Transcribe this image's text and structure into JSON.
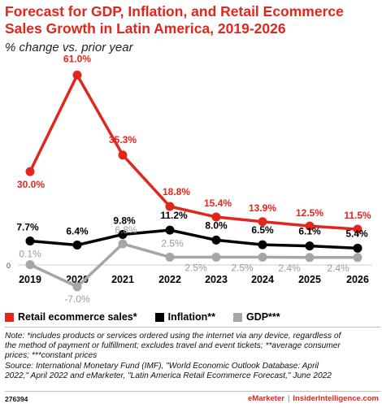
{
  "header": {
    "title_line1": "Forecast for GDP, Inflation, and Retail Ecommerce",
    "title_line2": "Sales Growth in Latin America, 2019-2026",
    "subtitle": "% change vs. prior year"
  },
  "chart_data": {
    "type": "line",
    "title": "Forecast for GDP, Inflation, and Retail Ecommerce Sales Growth in Latin America, 2019-2026",
    "subtitle": "% change vs. prior year",
    "x": [
      "2019",
      "2020",
      "2021",
      "2022",
      "2023",
      "2024",
      "2025",
      "2026"
    ],
    "ylim": [
      -9,
      63
    ],
    "zero_label": "0",
    "series": [
      {
        "name": "Retail ecommerce sales*",
        "color": "#e1261c",
        "values": [
          30.0,
          61.0,
          35.3,
          18.8,
          15.4,
          13.9,
          12.5,
          11.5
        ],
        "labels": [
          "30.0%",
          "61.0%",
          "35.3%",
          "18.8%",
          "15.4%",
          "13.9%",
          "12.5%",
          "11.5%"
        ]
      },
      {
        "name": "Inflation**",
        "color": "#000000",
        "values": [
          7.7,
          6.4,
          9.8,
          11.2,
          8.0,
          6.5,
          6.1,
          5.4
        ],
        "labels": [
          "7.7%",
          "6.4%",
          "9.8%",
          "11.2%",
          "8.0%",
          "6.5%",
          "6.1%",
          "5.4%"
        ]
      },
      {
        "name": "GDP***",
        "color": "#a6a6a6",
        "values": [
          0.1,
          -7.0,
          6.8,
          2.5,
          2.5,
          2.5,
          2.4,
          2.4
        ],
        "labels": [
          "0.1%",
          "-7.0%",
          "6.8%",
          "2.5%",
          "2.5%",
          "2.5%",
          "2.4%",
          "2.4%"
        ]
      }
    ],
    "legend_position": "bottom-left",
    "grid": false
  },
  "notes": {
    "line1": "Note: *includes products or services ordered using the internet via any device, regardless of",
    "line2": "the method of payment or fulfillment; excludes travel and event tickets; **average consumer",
    "line3": "prices; ***constant prices",
    "line4": "Source: International Monetary Fund (IMF), \"World Economic Outlook Database: April",
    "line5": "2022,\" April 2022 and eMarketer, \"Latin America Retail Ecommerce Forecast,\" June 2022"
  },
  "footer": {
    "chart_id": "276394",
    "brand": "eMarketer",
    "separator": "|",
    "site": "InsiderIntelligence.com"
  }
}
